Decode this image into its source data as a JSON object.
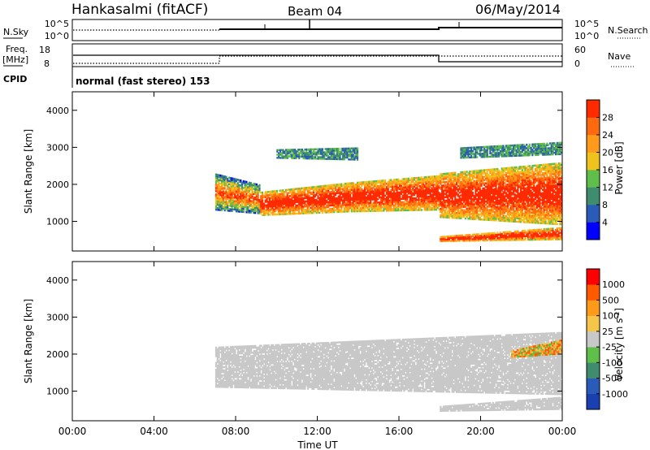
{
  "header": {
    "station": "Hankasalmi (fitACF)",
    "beam": "Beam 04",
    "date": "06/May/2014"
  },
  "top_panel": {
    "left_label": "N.Sky",
    "right_label": "N.Search",
    "left_ticks": [
      "10^5",
      "10^0"
    ],
    "right_ticks": [
      "10^5",
      "10^0"
    ]
  },
  "freq_panel": {
    "left_label_line1": "Freq.",
    "left_label_line2": "[MHz]",
    "right_label": "Nave",
    "left_ticks": [
      "18",
      "8"
    ],
    "right_ticks": [
      "60",
      "0"
    ],
    "cpid_label": "CPID",
    "cpid_text": "normal (fast stereo) 153"
  },
  "colors": {
    "power": [
      "#0000ff",
      "#2a5bb8",
      "#3f8c6f",
      "#5fbf4a",
      "#f0c21e",
      "#ff9a1a",
      "#ff6a10",
      "#ff2a00"
    ],
    "velocity": [
      "#ff0000",
      "#ff5a00",
      "#ff9a1a",
      "#f5c64a",
      "#c8c8c8",
      "#5fbf4a",
      "#3f8c6f",
      "#2a5bb8",
      "#1a3fb0"
    ],
    "ground_scatter": "#c8c8c8"
  },
  "colorbars": {
    "power": {
      "label": "Power [dB]",
      "ticks": [
        "28",
        "24",
        "20",
        "16",
        "12",
        "8",
        "4"
      ]
    },
    "velocity": {
      "label_text": "Velocity [m s",
      "label_sup": "-1",
      "label_close": "]",
      "ticks": [
        "1000",
        "500",
        "100",
        "25",
        "-25",
        "-100",
        "-500",
        "-1000"
      ]
    }
  },
  "chart_data": [
    {
      "type": "heatmap",
      "name": "power",
      "xlabel": "",
      "ylabel": "Slant Range [km]",
      "x_range_hours": [
        0,
        24
      ],
      "ylim": [
        200,
        4500
      ],
      "y_ticks": [
        1000,
        2000,
        3000,
        4000
      ],
      "scale_range_db": [
        0,
        30
      ],
      "regions": [
        {
          "x": [
            7.0,
            9.2
          ],
          "y_bottom": [
            1300,
            1200
          ],
          "y_top": [
            2300,
            2000
          ],
          "level": "mixed"
        },
        {
          "x": [
            9.2,
            13.5
          ],
          "y_bottom": [
            1150,
            1250
          ],
          "y_top": [
            1800,
            2050
          ],
          "level": "high"
        },
        {
          "x": [
            13.5,
            18.0
          ],
          "y_bottom": [
            1250,
            1300
          ],
          "y_top": [
            2050,
            2250
          ],
          "level": "high"
        },
        {
          "x": [
            18.0,
            24.0
          ],
          "y_bottom": [
            1100,
            900
          ],
          "y_top": [
            2300,
            2600
          ],
          "level": "high"
        },
        {
          "x": [
            18.0,
            24.0
          ],
          "y_bottom": [
            450,
            500
          ],
          "y_top": [
            600,
            850
          ],
          "level": "high"
        },
        {
          "x": [
            10.0,
            14.0
          ],
          "y_bottom": [
            2700,
            2650
          ],
          "y_top": [
            2950,
            3000
          ],
          "level": "low"
        },
        {
          "x": [
            19.0,
            24.0
          ],
          "y_bottom": [
            2700,
            2800
          ],
          "y_top": [
            3000,
            3150
          ],
          "level": "low"
        }
      ]
    },
    {
      "type": "heatmap",
      "name": "velocity",
      "xlabel": "Time UT",
      "ylabel": "Slant Range [km]",
      "x_range_hours": [
        0,
        24
      ],
      "x_ticks": [
        "00:00",
        "04:00",
        "08:00",
        "12:00",
        "16:00",
        "20:00",
        "00:00"
      ],
      "ylim": [
        200,
        4500
      ],
      "y_ticks": [
        1000,
        2000,
        3000,
        4000
      ],
      "scale_range_mps": [
        -1000,
        1000
      ],
      "regions": [
        {
          "x": [
            7.0,
            24.0
          ],
          "y_bottom": [
            1100,
            900
          ],
          "y_top": [
            2200,
            2600
          ],
          "class": "ground_scatter"
        },
        {
          "x": [
            18.0,
            24.0
          ],
          "y_bottom": [
            450,
            500
          ],
          "y_top": [
            600,
            850
          ],
          "class": "ground_scatter"
        },
        {
          "x": [
            21.5,
            24.0
          ],
          "y_bottom": [
            1900,
            2000
          ],
          "y_top": [
            2100,
            2400
          ],
          "class": "negative_velocity"
        }
      ]
    }
  ]
}
